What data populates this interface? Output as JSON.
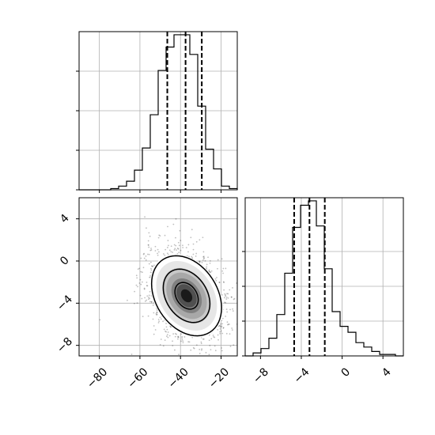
{
  "chart_data": [
    {
      "type": "histogram",
      "panel": "top-left",
      "parameter_index": 0,
      "x_range": [
        -90,
        -12
      ],
      "bin_edges": [
        -90,
        -86.1,
        -82.2,
        -78.3,
        -74.4,
        -70.5,
        -66.6,
        -62.7,
        -58.8,
        -54.9,
        -51,
        -47.1,
        -43.2,
        -39.3,
        -35.4,
        -31.5,
        -27.6,
        -23.7,
        -19.8,
        -15.9,
        -12
      ],
      "counts": [
        0,
        0,
        0,
        0,
        1,
        3,
        7,
        16,
        34,
        61,
        97,
        116,
        126,
        126,
        110,
        68,
        33,
        17,
        3,
        1
      ],
      "quantile_lines": [
        -46.5,
        -37.5,
        -29.5
      ],
      "x_tick_labels_shown": false,
      "y_tick_labels_shown": false,
      "grid": true
    },
    {
      "type": "scatter-density",
      "panel": "bottom-left",
      "x_parameter_index": 0,
      "y_parameter_index": 1,
      "x_range": [
        -90,
        -12
      ],
      "y_range": [
        -9,
        6
      ],
      "x_ticks": [
        -80,
        -60,
        -40,
        -20
      ],
      "y_ticks": [
        4,
        0,
        -4,
        -8
      ],
      "x_tick_labels": [
        "−80",
        "−60",
        "−40",
        "−20"
      ],
      "y_tick_labels": [
        "4",
        "0",
        "−4",
        "−8"
      ],
      "center": [
        -37,
        -3.3
      ],
      "spread": {
        "x_sd": 10,
        "y_sd": 2.2,
        "correlation": -0.3
      },
      "contour_levels_sigma": [
        0.5,
        1.0,
        1.5
      ],
      "grid": true
    },
    {
      "type": "histogram",
      "panel": "bottom-right",
      "parameter_index": 1,
      "x_range": [
        -9.5,
        6
      ],
      "bin_edges": [
        -9.5,
        -8.725,
        -7.95,
        -7.175,
        -6.4,
        -5.625,
        -4.85,
        -4.075,
        -3.3,
        -2.525,
        -1.75,
        -0.975,
        -0.2,
        0.575,
        1.35,
        2.125,
        2.9,
        3.675,
        4.45,
        5.225,
        6
      ],
      "counts": [
        0,
        2,
        5,
        12,
        28,
        56,
        87,
        102,
        105,
        88,
        59,
        30,
        20,
        16,
        9,
        6,
        3,
        1,
        1,
        0
      ],
      "quantile_lines": [
        -4.7,
        -3.2,
        -1.7
      ],
      "x_ticks": [
        -8,
        -4,
        0,
        4
      ],
      "x_tick_labels": [
        "−8",
        "−4",
        "0",
        "4"
      ],
      "y_tick_labels_shown": false,
      "grid": true
    }
  ]
}
